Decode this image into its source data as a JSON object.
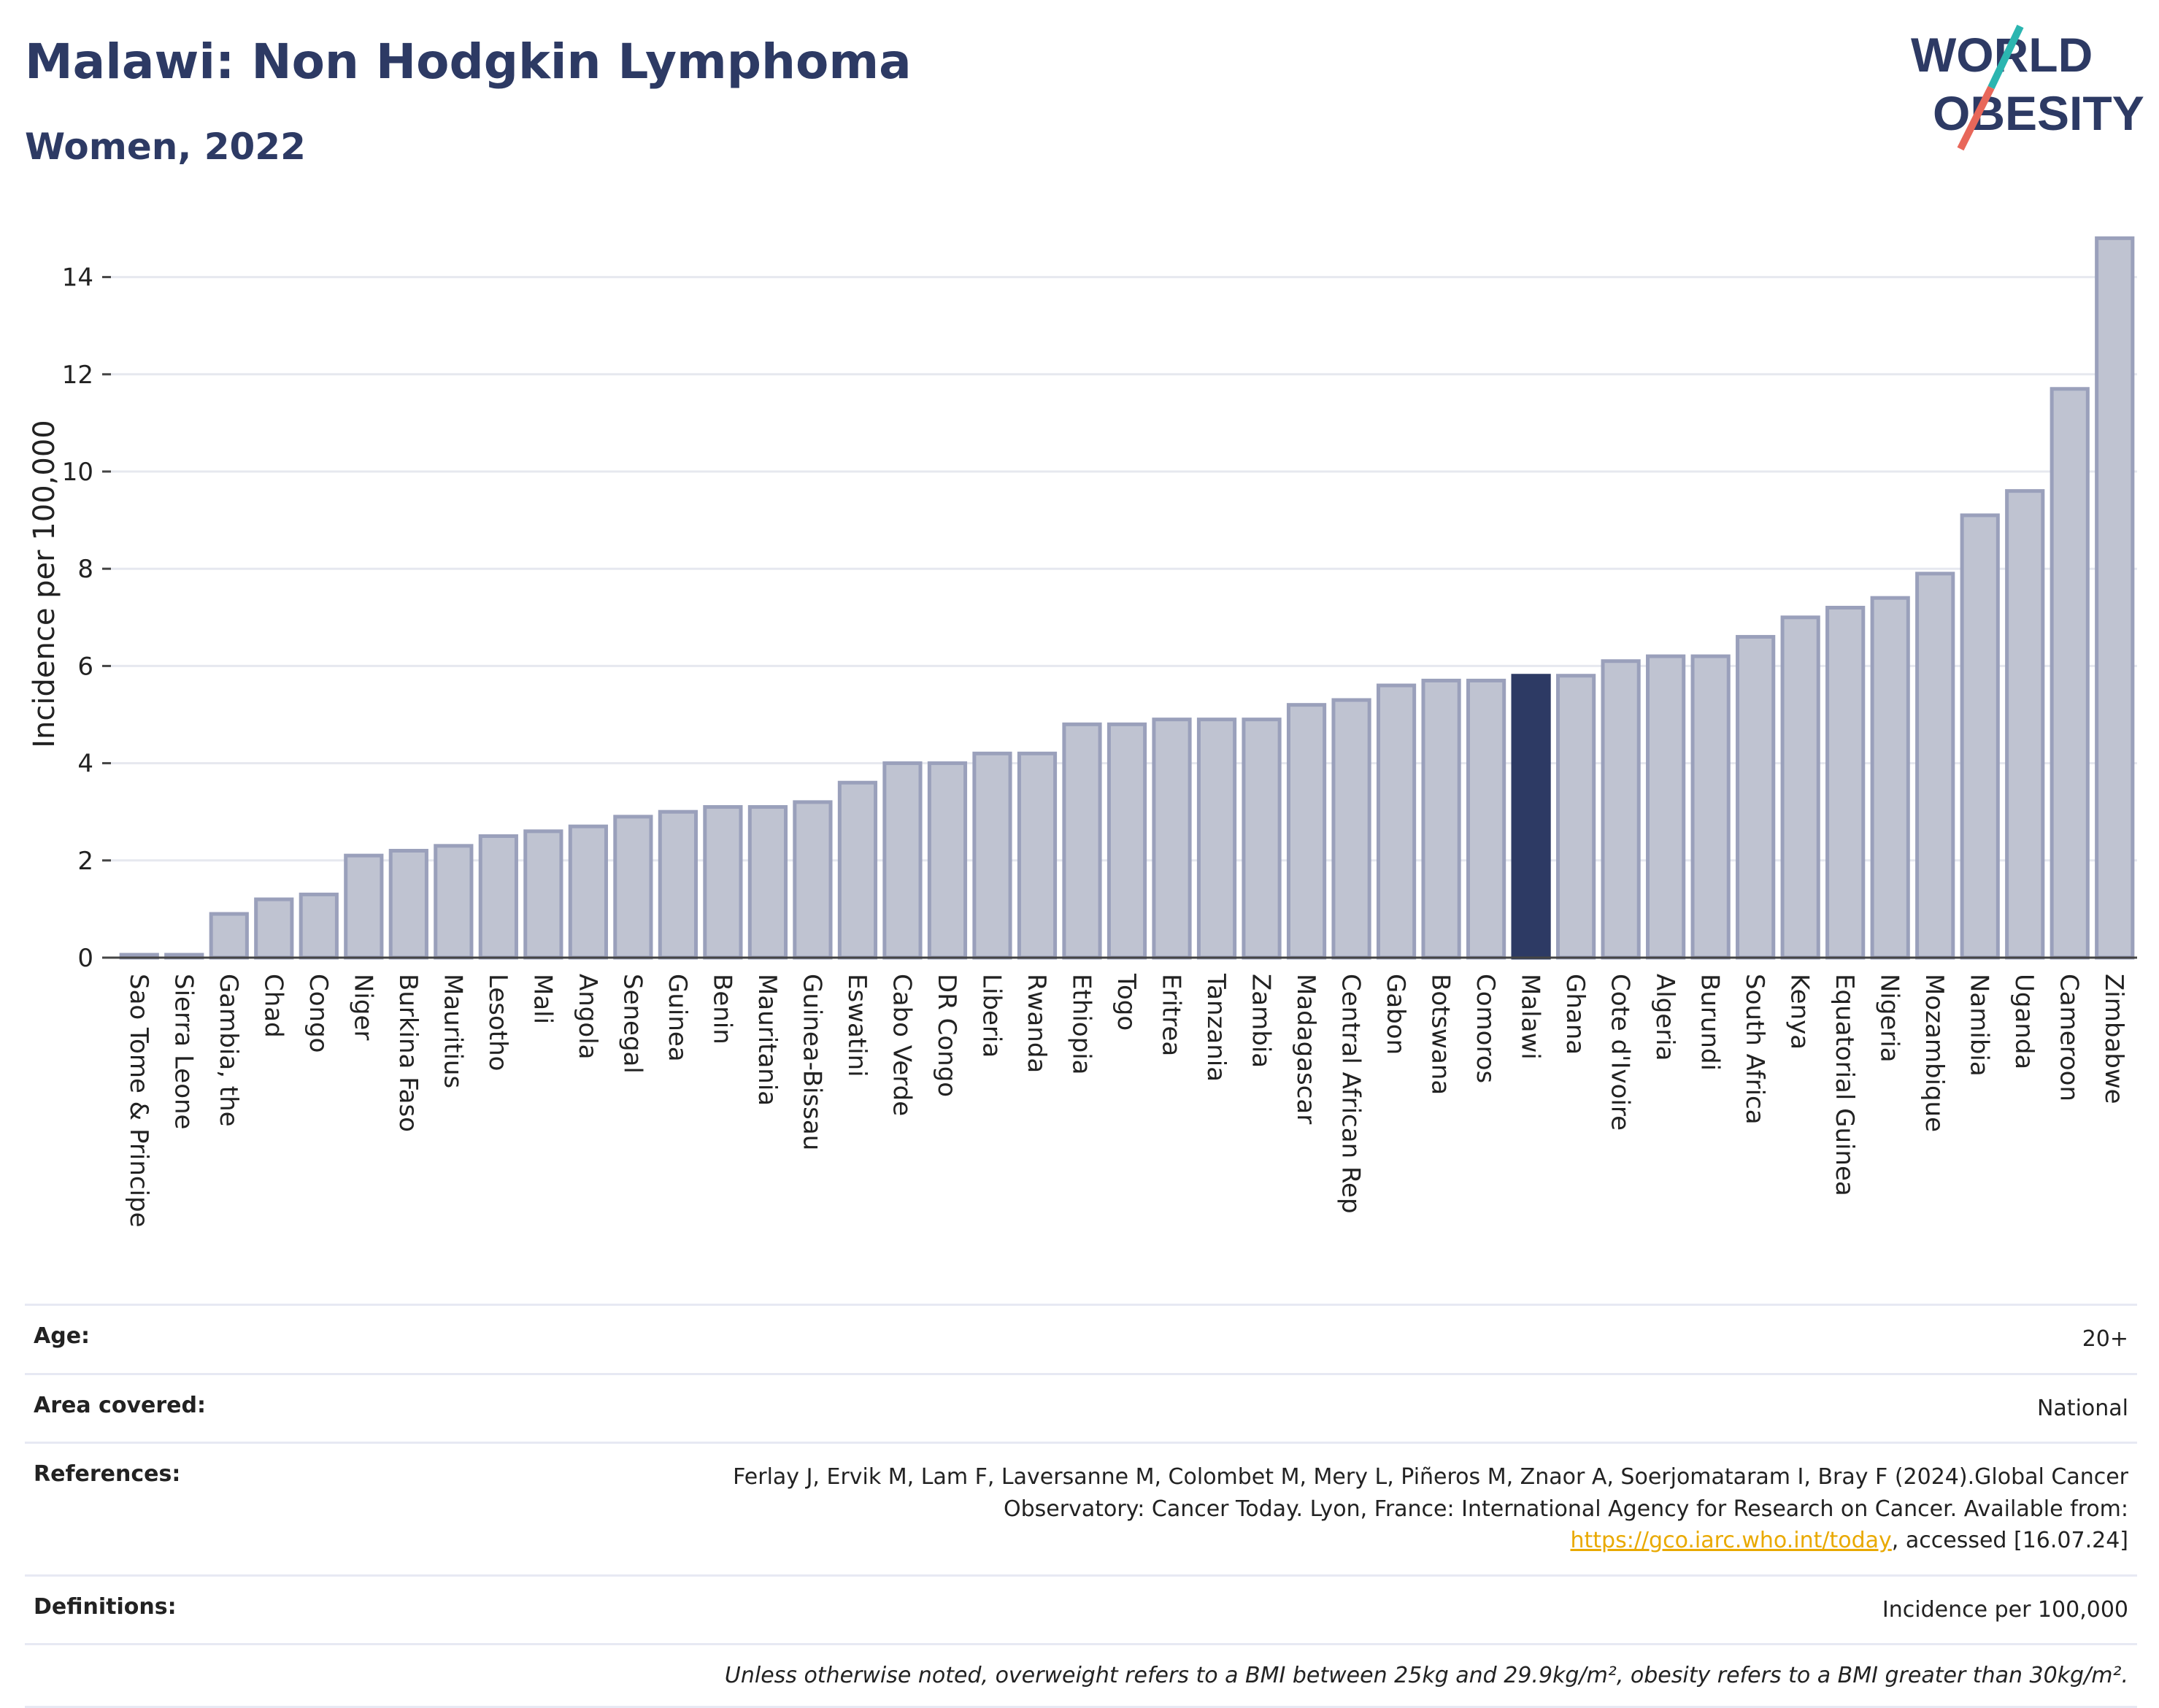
{
  "header": {
    "title": "Malawi: Non Hodgkin Lymphoma",
    "subtitle": "Women, 2022"
  },
  "logo": {
    "line1": "WORLD",
    "line2": "OBESITY",
    "colors": {
      "text": "#2d3a64",
      "slash_top": "#2bb5b0",
      "slash_bottom": "#e8675a"
    }
  },
  "chart_data": {
    "type": "bar",
    "ylabel": "Incidence per 100,000",
    "xlabel": "",
    "ylim": [
      0,
      15
    ],
    "yticks": [
      0,
      2,
      4,
      6,
      8,
      10,
      12,
      14
    ],
    "grid": true,
    "highlight": "Malawi",
    "colors": {
      "bar": "#bfc3d1",
      "bar_border": "#9aa0bb",
      "highlight": "#2d3a64",
      "grid": "#e6e8ef"
    },
    "categories": [
      "Sao Tome & Principe",
      "Sierra Leone",
      "Gambia, the",
      "Chad",
      "Congo",
      "Niger",
      "Burkina Faso",
      "Mauritius",
      "Lesotho",
      "Mali",
      "Angola",
      "Senegal",
      "Guinea",
      "Benin",
      "Mauritania",
      "Guinea-Bissau",
      "Eswatini",
      "Cabo Verde",
      "DR Congo",
      "Liberia",
      "Rwanda",
      "Ethiopia",
      "Togo",
      "Eritrea",
      "Tanzania",
      "Zambia",
      "Madagascar",
      "Central African Rep",
      "Gabon",
      "Botswana",
      "Comoros",
      "Malawi",
      "Ghana",
      "Cote d'Ivoire",
      "Algeria",
      "Burundi",
      "South Africa",
      "Kenya",
      "Equatorial Guinea",
      "Nigeria",
      "Mozambique",
      "Namibia",
      "Uganda",
      "Cameroon",
      "Zimbabwe"
    ],
    "values": [
      0.06,
      0.06,
      0.9,
      1.2,
      1.3,
      2.1,
      2.2,
      2.3,
      2.5,
      2.6,
      2.7,
      2.9,
      3.0,
      3.1,
      3.1,
      3.2,
      3.6,
      4.0,
      4.0,
      4.2,
      4.2,
      4.8,
      4.8,
      4.9,
      4.9,
      4.9,
      5.2,
      5.3,
      5.6,
      5.7,
      5.7,
      5.8,
      5.8,
      6.1,
      6.2,
      6.2,
      6.6,
      7.0,
      7.2,
      7.4,
      7.9,
      9.1,
      9.6,
      11.7,
      14.8
    ]
  },
  "info": {
    "age_label": "Age:",
    "age_value": "20+",
    "area_label": "Area covered:",
    "area_value": "National",
    "references_label": "References:",
    "references_text": "Ferlay J, Ervik M, Lam F, Laversanne M, Colombet M, Mery L, Piñeros M, Znaor A, Soerjomataram I, Bray F (2024).Global Cancer Observatory: Cancer Today. Lyon, France: International Agency for Research on Cancer. Available from: ",
    "references_link": "https://gco.iarc.who.int/today",
    "references_suffix": ", accessed [16.07.24]",
    "definitions_label": "Definitions:",
    "definitions_value": "Incidence per 100,000",
    "note": "Unless otherwise noted, overweight refers to a BMI between 25kg and 29.9kg/m², obesity refers to a BMI greater than 30kg/m²."
  }
}
